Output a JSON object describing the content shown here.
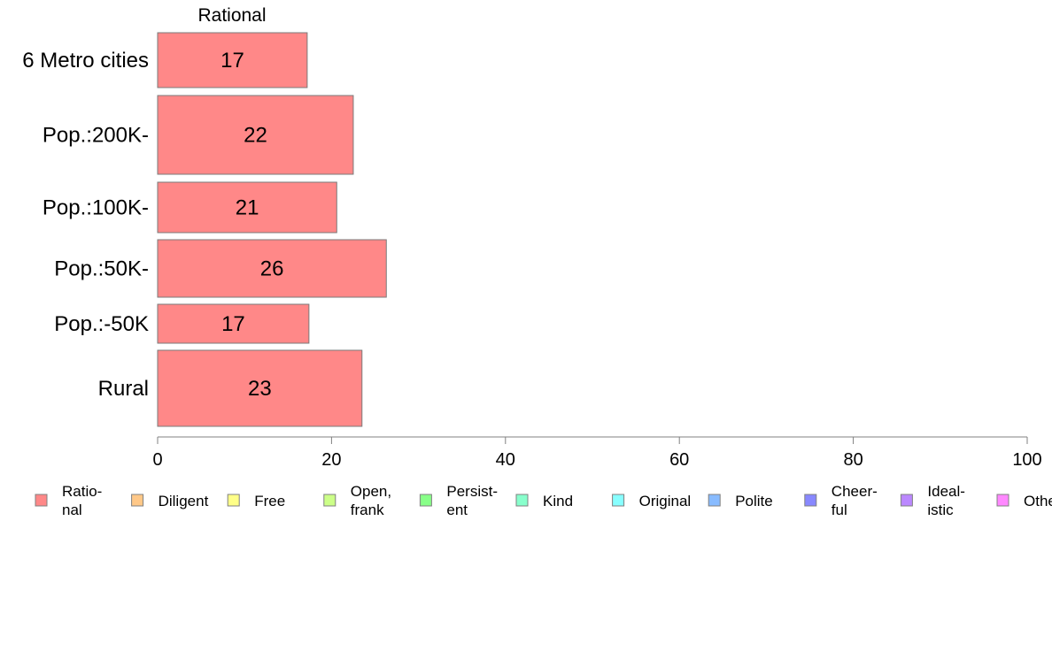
{
  "chart_data": {
    "type": "bar",
    "orientation": "horizontal",
    "column_header": "Rational",
    "categories": [
      "6 Metro cities",
      "Pop.:200K-",
      "Pop.:100K-",
      "Pop.:50K-",
      "Pop.:-50K",
      "Rural"
    ],
    "series": [
      {
        "name": "Rational",
        "values": [
          17.2,
          22.5,
          20.6,
          26.3,
          17.4,
          23.5
        ],
        "labels": [
          "17",
          "22",
          "21",
          "26",
          "17",
          "23"
        ],
        "color": "#FF8888"
      }
    ],
    "xlim": [
      0,
      100
    ],
    "xticks": [
      "0",
      "20",
      "40",
      "60",
      "80",
      "100"
    ],
    "grid": false,
    "legend_position": "bottom",
    "legend": [
      {
        "lines": [
          "Ratio-",
          "nal"
        ],
        "color": "#FF8888"
      },
      {
        "lines": [
          "Diligent"
        ],
        "color": "#FFC888"
      },
      {
        "lines": [
          "Free"
        ],
        "color": "#FFFF88"
      },
      {
        "lines": [
          "Open,",
          "frank"
        ],
        "color": "#CCFF88"
      },
      {
        "lines": [
          "Persist-",
          "ent"
        ],
        "color": "#88FF88"
      },
      {
        "lines": [
          "Kind"
        ],
        "color": "#88FFCC"
      },
      {
        "lines": [
          "Original"
        ],
        "color": "#88FFFF"
      },
      {
        "lines": [
          "Polite"
        ],
        "color": "#88BBFF"
      },
      {
        "lines": [
          "Cheer-",
          "ful"
        ],
        "color": "#8888FF"
      },
      {
        "lines": [
          "Ideal-",
          "istic"
        ],
        "color": "#BB88FF"
      },
      {
        "lines": [
          "Other"
        ],
        "color": "#FF88FF"
      }
    ]
  }
}
